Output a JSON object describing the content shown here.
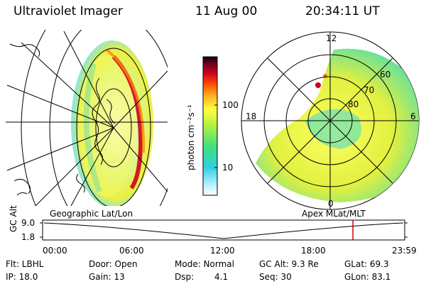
{
  "header": {
    "instrument": "Ultraviolet Imager",
    "date": "11 Aug 00",
    "time": "20:34:11 UT"
  },
  "colorbar": {
    "unit_label": "photon cm⁻²s⁻¹",
    "ticks": [
      "100",
      "10"
    ],
    "colors": [
      "#ffffff",
      "#b0f0ff",
      "#30d0e0",
      "#40e080",
      "#b0f040",
      "#ffff40",
      "#ffb020",
      "#ff5000",
      "#d00020",
      "#700020",
      "#100010"
    ]
  },
  "geo_panel": {
    "label": "Geographic Lat/Lon"
  },
  "polar_panel": {
    "label": "Apex MLat/MLT",
    "mlt_labels": {
      "top": "12",
      "left": "18",
      "right": "6",
      "bottom": "0"
    },
    "lat_labels": [
      "60",
      "70",
      "80"
    ]
  },
  "timeline": {
    "axis_label": "GC Alt",
    "y_ticks": [
      "9.0",
      "1.8"
    ],
    "x_ticks": [
      "00:00",
      "06:00",
      "12:00",
      "18:00",
      "23:59"
    ],
    "current_time_fraction": 0.857,
    "marker_color": "#d00000"
  },
  "info": {
    "row1": {
      "flt": "Flt: LBHL",
      "door": "Door: Open",
      "mode": "Mode: Normal",
      "gcalt": "GC Alt: 9.3 Re",
      "glat": "GLat: 69.3"
    },
    "row2": {
      "ip": "IP: 18.0",
      "gain": "Gain: 13",
      "dsp_label": "Dsp:",
      "dsp_value": "4.1",
      "seq": "Seq: 30",
      "glon": "GLon: 83.1"
    }
  }
}
